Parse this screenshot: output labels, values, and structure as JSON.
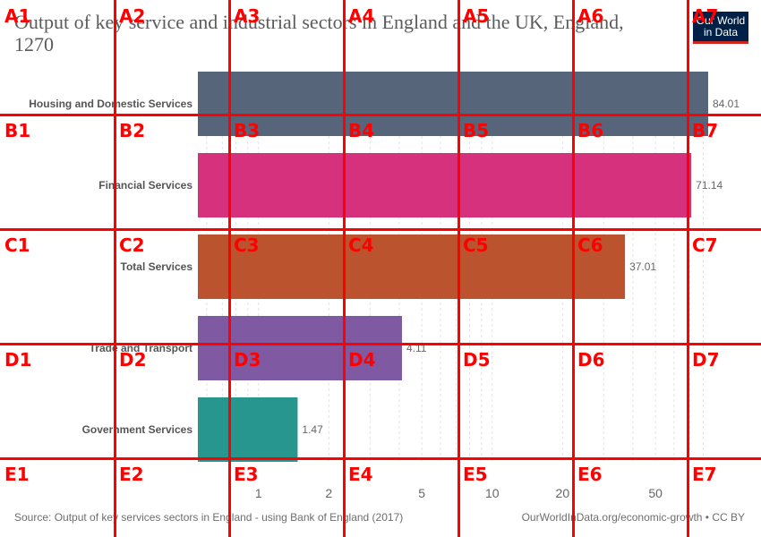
{
  "header": {
    "title": "Output of key service and industrial sectors in England and the UK, England, 1270",
    "logo_line1": "Our World",
    "logo_line2": "in Data"
  },
  "chart_data": {
    "type": "bar",
    "orientation": "horizontal",
    "x_scale": "log",
    "categories": [
      "Housing and Domestic Services",
      "Financial Services",
      "Total Services",
      "Trade and Transport",
      "Government Services"
    ],
    "values": [
      84.01,
      71.14,
      37.01,
      4.11,
      1.47
    ],
    "value_labels": [
      "84.01",
      "71.14",
      "37.01",
      "4.11",
      "1.47"
    ],
    "colors": [
      "#56657a",
      "#d6317d",
      "#bb532e",
      "#7f5aa3",
      "#26968e"
    ],
    "xticks": [
      1,
      2,
      5,
      10,
      20,
      50
    ],
    "xtick_labels": [
      "1",
      "2",
      "5",
      "10",
      "20",
      "50"
    ],
    "xlim": [
      0.55,
      84.01
    ],
    "grid": true
  },
  "footer": {
    "source": "Source: Output of key services sectors in England - using Bank of England (2017)",
    "credit": "OurWorldInData.org/economic-growth • CC BY"
  },
  "overlay": {
    "rows": [
      "A",
      "B",
      "C",
      "D",
      "E"
    ],
    "cols": [
      "1",
      "2",
      "3",
      "4",
      "5",
      "6",
      "7"
    ],
    "color": "#ff0000"
  }
}
